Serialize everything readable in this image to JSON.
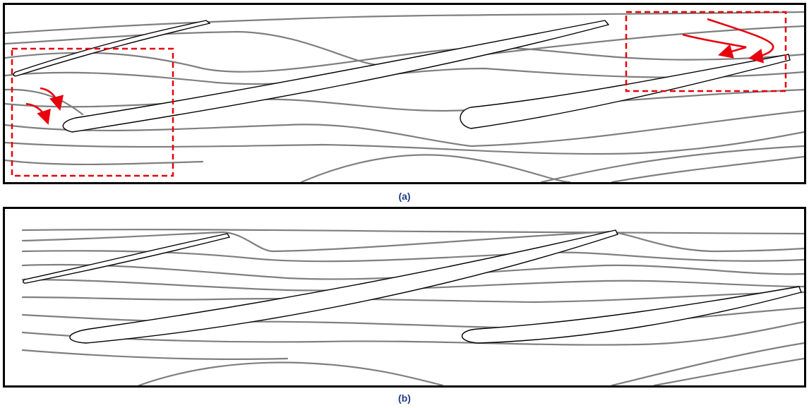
{
  "figure": {
    "panel_a": {
      "caption": "(a)"
    },
    "panel_b": {
      "caption": "(b)"
    }
  },
  "colors": {
    "streamlines": "#7f7f7f",
    "blades": "#000000",
    "highlight": "#e8000b",
    "caption": "#1f3c88"
  }
}
